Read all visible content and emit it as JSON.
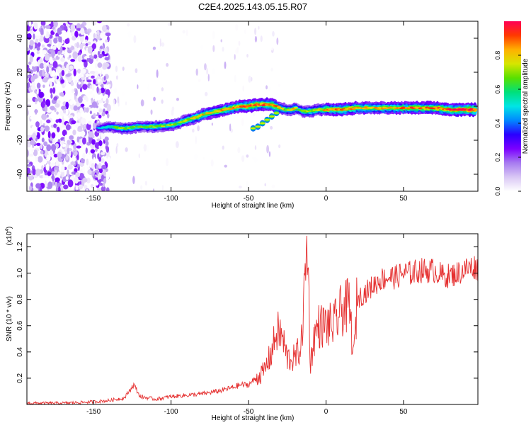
{
  "figure": {
    "title": "C2E4.2025.143.05.15.R07"
  },
  "chart_data": [
    {
      "type": "heatmap",
      "xlabel": "Height of straight line (km)",
      "ylabel": "Frequency (Hz)",
      "xlim": [
        -193,
        98
      ],
      "ylim": [
        -50,
        50
      ],
      "xticks": [
        -150,
        -100,
        -50,
        0,
        50
      ],
      "yticks": [
        -40,
        -20,
        0,
        20,
        40
      ],
      "grid": false,
      "colorbar": {
        "label": "Normalized spectral amplitude",
        "range": [
          0,
          1
        ],
        "ticks": [
          "0.0",
          "0.2",
          "0.4",
          "0.6",
          "0.8"
        ],
        "colors": [
          "#ffffff",
          "#d9c7f5",
          "#a77bf0",
          "#7b00ff",
          "#2a00ff",
          "#0088ff",
          "#00e5e5",
          "#00e07a",
          "#59e000",
          "#d6e600",
          "#ffb000",
          "#ff3a00",
          "#ff0055"
        ]
      },
      "ridge": {
        "description": "frequency of strongest spectral ridge vs height",
        "x": [
          -147,
          -140,
          -130,
          -120,
          -110,
          -100,
          -95,
          -90,
          -85,
          -80,
          -75,
          -70,
          -65,
          -60,
          -55,
          -50,
          -45,
          -42,
          -40,
          -35,
          -30,
          -25,
          -22,
          -20,
          -18,
          -15,
          -10,
          -5,
          0,
          10,
          20,
          30,
          40,
          50,
          60,
          70,
          80,
          90,
          97
        ],
        "y": [
          -13,
          -12,
          -13,
          -12,
          -12,
          -11,
          -10,
          -8,
          -7,
          -5,
          -4,
          -3,
          -2,
          -1,
          0,
          0,
          1,
          1,
          1,
          1,
          -1,
          -2,
          -2,
          -1,
          -2,
          -3,
          -3,
          -2,
          -2,
          -2,
          -1,
          -1,
          -1,
          -1,
          -1,
          -1,
          -2,
          -2,
          -2
        ],
        "peak_amplitude": [
          0.45,
          0.6,
          0.7,
          0.65,
          0.7,
          0.72,
          0.7,
          0.75,
          0.78,
          0.8,
          0.8,
          0.82,
          0.85,
          0.85,
          0.9,
          0.95,
          0.9,
          0.85,
          0.95,
          0.9,
          0.8,
          0.7,
          0.75,
          0.8,
          0.6,
          0.7,
          0.75,
          0.7,
          0.85,
          0.9,
          0.85,
          0.8,
          0.82,
          0.85,
          0.88,
          0.9,
          0.95,
          0.98,
          1.0
        ]
      },
      "secondary_branch": {
        "x": [
          -47,
          -44,
          -41,
          -38,
          -35,
          -32
        ],
        "y": [
          -13,
          -12,
          -10,
          -8,
          -6,
          -4
        ]
      },
      "noise_region": {
        "x_range": [
          -193,
          -140
        ],
        "y_range": [
          -50,
          50
        ]
      }
    },
    {
      "type": "line",
      "xlabel": "Height of straight line (km)",
      "ylabel": "SNR (10 * v/v)",
      "yscale_label": "(x10",
      "yscale_exponent": "4",
      "xlim": [
        -193,
        98
      ],
      "ylim": [
        0,
        1.3
      ],
      "xticks": [
        -150,
        -100,
        -50,
        0,
        50
      ],
      "yticks": [
        0.2,
        0.4,
        0.6,
        0.8,
        1.0,
        1.2
      ],
      "color": "#e53030",
      "grid": false,
      "series": [
        {
          "x": [
            -193,
            -170,
            -150,
            -140,
            -130,
            -126,
            -124,
            -120,
            -110,
            -100,
            -90,
            -80,
            -70,
            -60,
            -55,
            -50,
            -45,
            -40,
            -35,
            -32,
            -30,
            -28,
            -25,
            -20,
            -16,
            -14,
            -12,
            -10,
            -8,
            -5,
            0,
            5,
            10,
            15,
            18,
            20,
            25,
            30,
            35,
            40,
            45,
            50,
            55,
            60,
            65,
            70,
            75,
            80,
            85,
            90,
            95,
            98
          ],
          "y": [
            0.01,
            0.01,
            0.02,
            0.03,
            0.05,
            0.12,
            0.15,
            0.06,
            0.04,
            0.06,
            0.07,
            0.08,
            0.1,
            0.13,
            0.15,
            0.15,
            0.2,
            0.25,
            0.4,
            0.55,
            0.55,
            0.5,
            0.35,
            0.35,
            0.45,
            0.85,
            1.25,
            0.3,
            0.5,
            0.6,
            0.6,
            0.6,
            0.72,
            0.75,
            0.35,
            0.8,
            0.85,
            0.9,
            0.95,
            0.97,
            0.97,
            1.0,
            1.0,
            1.02,
            1.02,
            1.02,
            0.98,
            0.98,
            1.0,
            1.03,
            1.05,
            1.04
          ]
        }
      ]
    }
  ]
}
